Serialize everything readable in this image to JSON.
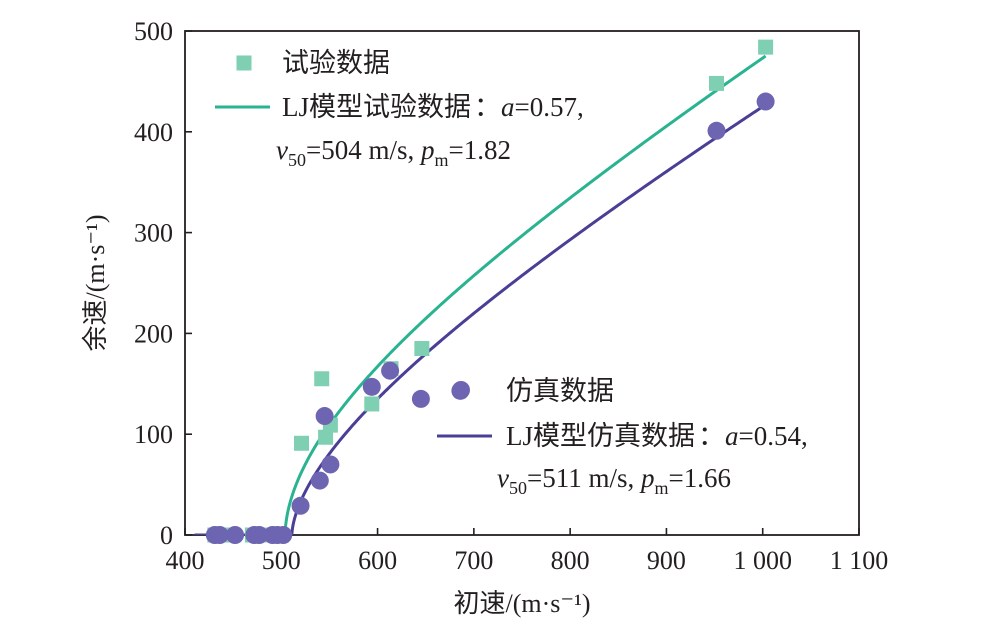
{
  "chart_data": {
    "type": "scatter",
    "xlabel": "初速/(m·s⁻¹)",
    "ylabel": "余速/(m·s⁻¹)",
    "xlim": [
      400,
      1100
    ],
    "ylim": [
      0,
      500
    ],
    "x_ticks": [
      400,
      500,
      600,
      700,
      800,
      900,
      1000,
      1100
    ],
    "x_tick_labels": [
      "400",
      "500",
      "600",
      "700",
      "800",
      "900",
      "1 000",
      "1 100"
    ],
    "y_ticks": [
      0,
      100,
      200,
      300,
      400,
      500
    ],
    "y_tick_labels": [
      "0",
      "100",
      "200",
      "300",
      "400",
      "500"
    ],
    "grid": false,
    "series": [
      {
        "name": "试验数据",
        "kind": "scatter",
        "marker": "square",
        "color": "#7fcfb3",
        "points": [
          [
            431,
            0
          ],
          [
            436,
            0
          ],
          [
            450,
            0
          ],
          [
            470,
            0
          ],
          [
            475,
            0
          ],
          [
            490,
            0
          ],
          [
            495,
            0
          ],
          [
            500,
            0
          ],
          [
            521,
            91
          ],
          [
            542,
            155
          ],
          [
            546,
            97
          ],
          [
            551,
            109
          ],
          [
            594,
            130
          ],
          [
            614,
            165
          ],
          [
            646,
            185
          ],
          [
            952,
            448
          ],
          [
            1003,
            484
          ]
        ]
      },
      {
        "name": "LJ模型试验数据",
        "kind": "line",
        "color": "#2ab390",
        "model": {
          "a": 0.57,
          "v50": 504,
          "pm": 1.82,
          "x_end": 1003
        }
      },
      {
        "name": "仿真数据",
        "kind": "scatter",
        "marker": "circle",
        "color": "#6d65b1",
        "points": [
          [
            431,
            0
          ],
          [
            436,
            0
          ],
          [
            452,
            0
          ],
          [
            472,
            0
          ],
          [
            477,
            0
          ],
          [
            491,
            0
          ],
          [
            496,
            0
          ],
          [
            502,
            0
          ],
          [
            520,
            29
          ],
          [
            540,
            54
          ],
          [
            545,
            118
          ],
          [
            551,
            70
          ],
          [
            594,
            147
          ],
          [
            613,
            163
          ],
          [
            645,
            135
          ],
          [
            686,
            143
          ],
          [
            952,
            401
          ],
          [
            1003,
            430
          ]
        ]
      },
      {
        "name": "LJ模型仿真数据",
        "kind": "line",
        "color": "#4a3f96",
        "model": {
          "a": 0.54,
          "v50": 511,
          "pm": 1.66,
          "x_end": 1003
        }
      }
    ],
    "legend_groups": [
      {
        "location": "top-left",
        "scatter_label": "试验数据",
        "line_label": "LJ模型试验数据",
        "line_params": {
          "a_label": "a",
          "a_value": "=0.57,",
          "v_label": "v",
          "v_sub": "50",
          "v_value": "=504 m/s, ",
          "p_label": "p",
          "p_sub": "m",
          "p_value": "=1.82"
        }
      },
      {
        "location": "center-right",
        "scatter_label": "仿真数据",
        "line_label": "LJ模型仿真数据",
        "line_params": {
          "a_label": "a",
          "a_value": "=0.54,",
          "v_label": "v",
          "v_sub": "50",
          "v_value": "=511 m/s, ",
          "p_label": "p",
          "p_sub": "m",
          "p_value": "=1.66"
        }
      }
    ]
  }
}
